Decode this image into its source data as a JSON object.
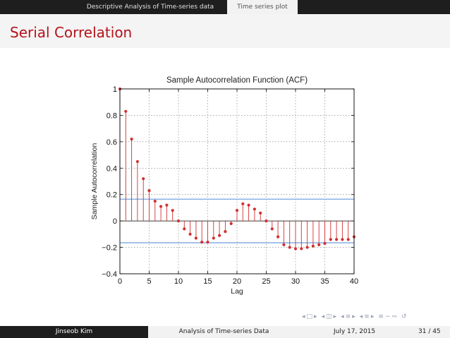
{
  "nav": {
    "section_label": "Descriptive Analysis of Time-series data",
    "subsection_label": "Time series plot"
  },
  "frame": {
    "title": "Serial Correlation"
  },
  "footer": {
    "author": "Jinseob Kim",
    "title": "Analysis of Time-series Data",
    "date": "July 17, 2015",
    "page": "31 / 45"
  },
  "colors": {
    "accent": "#b5121b",
    "stem": "#d32f2f",
    "bound": "#8fb3e6",
    "nav_bg": "#1e1e1e"
  },
  "chart_data": {
    "type": "stem",
    "title": "Sample Autocorrelation Function (ACF)",
    "xlabel": "Lag",
    "ylabel": "Sample Autocorrelation",
    "xlim": [
      0,
      40
    ],
    "ylim": [
      -0.4,
      1
    ],
    "xticks": [
      "0",
      "5",
      "10",
      "15",
      "20",
      "25",
      "30",
      "35",
      "40"
    ],
    "yticks": [
      "−0.4",
      "−0.2",
      "0",
      "0.2",
      "0.4",
      "0.6",
      "0.8",
      "1"
    ],
    "grid": true,
    "confidence_bounds": [
      0.165,
      -0.165
    ],
    "x": [
      0,
      1,
      2,
      3,
      4,
      5,
      6,
      7,
      8,
      9,
      10,
      11,
      12,
      13,
      14,
      15,
      16,
      17,
      18,
      19,
      20,
      21,
      22,
      23,
      24,
      25,
      26,
      27,
      28,
      29,
      30,
      31,
      32,
      33,
      34,
      35,
      36,
      37,
      38,
      39,
      40
    ],
    "values": [
      1.0,
      0.83,
      0.62,
      0.45,
      0.32,
      0.23,
      0.15,
      0.11,
      0.12,
      0.08,
      0.0,
      -0.06,
      -0.1,
      -0.13,
      -0.16,
      -0.16,
      -0.13,
      -0.11,
      -0.08,
      -0.02,
      0.08,
      0.13,
      0.12,
      0.09,
      0.06,
      0.0,
      -0.06,
      -0.12,
      -0.18,
      -0.2,
      -0.21,
      -0.21,
      -0.2,
      -0.19,
      -0.18,
      -0.17,
      -0.14,
      -0.14,
      -0.14,
      -0.14,
      -0.12
    ]
  },
  "beamer_nav_icons": [
    "◂",
    "□",
    "▸",
    "◂",
    "◫",
    "▸",
    "◂",
    "≡",
    "▸",
    "◂",
    "≡",
    "▸",
    "≡",
    "∽",
    "∾",
    "↺"
  ]
}
